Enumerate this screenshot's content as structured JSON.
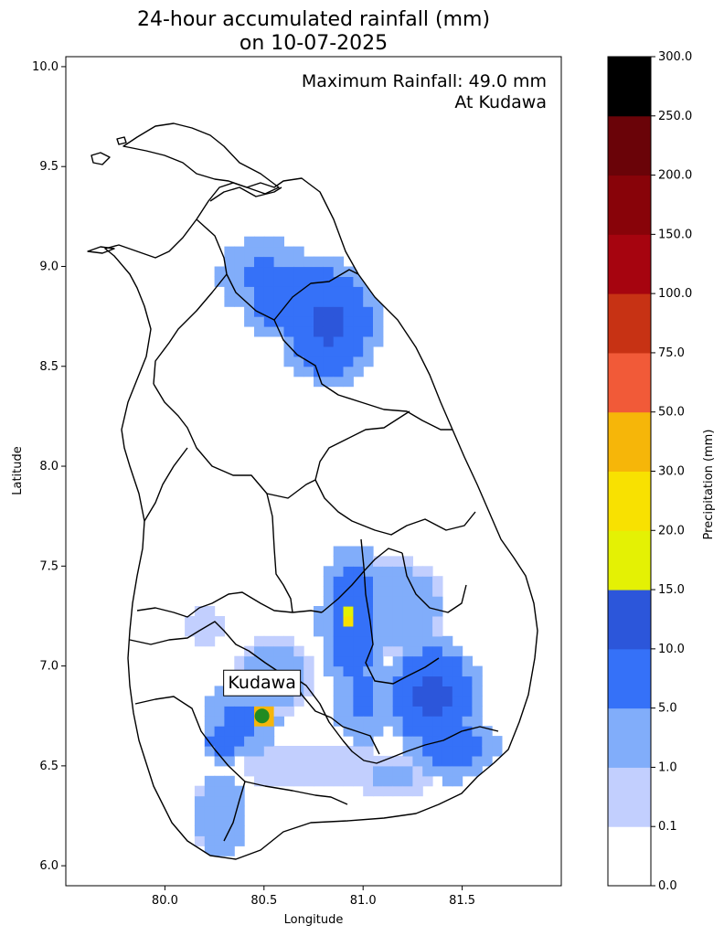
{
  "chart_data": {
    "type": "heatmap",
    "title_line1": "24-hour accumulated rainfall (mm)",
    "title_line2": "on 10-07-2025",
    "xlabel": "Longitude",
    "ylabel": "Latitude",
    "xlim": [
      79.5,
      82.0
    ],
    "ylim": [
      5.9,
      10.05
    ],
    "xticks": [
      80.0,
      80.5,
      81.0,
      81.5
    ],
    "xtick_labels": [
      "80.0",
      "80.5",
      "81.0",
      "81.5"
    ],
    "yticks": [
      6.0,
      6.5,
      7.0,
      7.5,
      8.0,
      8.5,
      9.0,
      9.5,
      10.0
    ],
    "ytick_labels": [
      "6.0",
      "6.5",
      "7.0",
      "7.5",
      "8.0",
      "8.5",
      "9.0",
      "9.5",
      "10.0"
    ],
    "annotation_line1": "Maximum Rainfall: 49.0 mm",
    "annotation_line2": "At Kudawa",
    "max_station": {
      "name": "Kudawa",
      "lon": 80.49,
      "lat": 6.75,
      "value": 49.0,
      "marker_color": "#228b22"
    },
    "colorbar": {
      "label": "Precipitation (mm)",
      "boundaries": [
        0.0,
        0.1,
        1.0,
        5.0,
        10.0,
        15.0,
        20.0,
        30.0,
        50.0,
        75.0,
        100.0,
        150.0,
        200.0,
        250.0,
        300.0
      ],
      "tick_labels": [
        "0.0",
        "0.1",
        "1.0",
        "5.0",
        "10.0",
        "15.0",
        "20.0",
        "30.0",
        "50.0",
        "75.0",
        "100.0",
        "150.0",
        "200.0",
        "250.0",
        "300.0"
      ],
      "colors": [
        "#ffffff",
        "#c2cffe",
        "#81adfa",
        "#3571f8",
        "#2c56da",
        "#e4f104",
        "#f8e101",
        "#f6b609",
        "#f15a38",
        "#c73214",
        "#a6040f",
        "#880309",
        "#6a0308",
        "#000000"
      ]
    },
    "rain_cells": [
      {
        "lon": 80.65,
        "lat": 8.85,
        "rx": 0.28,
        "ry": 0.23,
        "peak": 9
      },
      {
        "lon": 80.83,
        "lat": 8.72,
        "rx": 0.26,
        "ry": 0.32,
        "peak": 11
      },
      {
        "lon": 80.49,
        "lat": 8.95,
        "rx": 0.22,
        "ry": 0.2,
        "peak": 6
      },
      {
        "lon": 80.95,
        "lat": 7.22,
        "rx": 0.18,
        "ry": 0.4,
        "peak": 8
      },
      {
        "lon": 80.92,
        "lat": 7.24,
        "rx": 0.05,
        "ry": 0.07,
        "peak": 24
      },
      {
        "lon": 81.35,
        "lat": 6.85,
        "rx": 0.25,
        "ry": 0.3,
        "peak": 11
      },
      {
        "lon": 81.1,
        "lat": 7.3,
        "rx": 0.32,
        "ry": 0.25,
        "peak": 3
      },
      {
        "lon": 81.45,
        "lat": 6.6,
        "rx": 0.24,
        "ry": 0.18,
        "peak": 8
      },
      {
        "lon": 81.0,
        "lat": 6.85,
        "rx": 0.16,
        "ry": 0.25,
        "peak": 6
      },
      {
        "lon": 80.49,
        "lat": 6.75,
        "rx": 0.07,
        "ry": 0.06,
        "peak": 49
      },
      {
        "lon": 80.38,
        "lat": 6.73,
        "rx": 0.2,
        "ry": 0.18,
        "peak": 6
      },
      {
        "lon": 80.3,
        "lat": 6.62,
        "rx": 0.12,
        "ry": 0.12,
        "peak": 8
      },
      {
        "lon": 80.28,
        "lat": 6.25,
        "rx": 0.13,
        "ry": 0.22,
        "peak": 4
      },
      {
        "lon": 80.55,
        "lat": 6.95,
        "rx": 0.2,
        "ry": 0.2,
        "peak": 2
      },
      {
        "lon": 80.2,
        "lat": 7.2,
        "rx": 0.08,
        "ry": 0.1,
        "peak": 0.8
      },
      {
        "lon": 80.75,
        "lat": 6.5,
        "rx": 0.38,
        "ry": 0.12,
        "peak": 0.8
      },
      {
        "lon": 81.15,
        "lat": 6.45,
        "rx": 0.2,
        "ry": 0.1,
        "peak": 1.5
      }
    ]
  }
}
